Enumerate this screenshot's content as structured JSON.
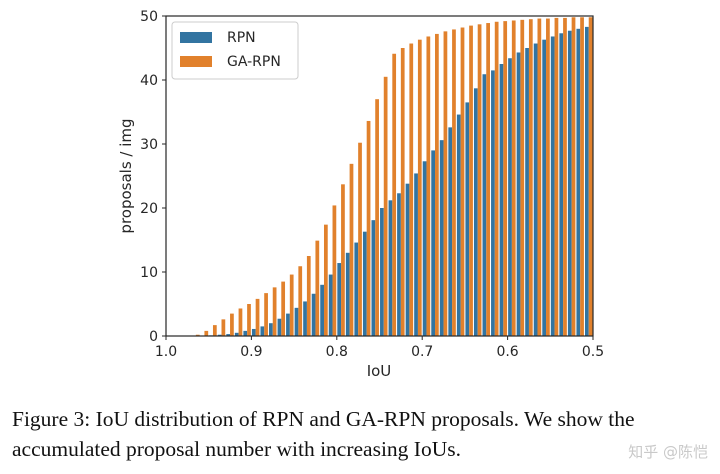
{
  "chart_data": {
    "type": "bar",
    "xlabel": "IoU",
    "ylabel": "proposals / img",
    "ylim": [
      0,
      50
    ],
    "xlim": [
      1.0,
      0.5
    ],
    "x_ticks": [
      "1.0",
      "0.9",
      "0.8",
      "0.7",
      "0.6",
      "0.5"
    ],
    "y_ticks": [
      "0",
      "10",
      "20",
      "30",
      "40",
      "50"
    ],
    "grid": false,
    "legend_position": "top-left",
    "categories": [
      0.975,
      0.965,
      0.955,
      0.945,
      0.935,
      0.925,
      0.915,
      0.905,
      0.895,
      0.885,
      0.875,
      0.865,
      0.855,
      0.845,
      0.835,
      0.825,
      0.815,
      0.805,
      0.795,
      0.785,
      0.775,
      0.765,
      0.755,
      0.745,
      0.735,
      0.725,
      0.715,
      0.705,
      0.695,
      0.685,
      0.675,
      0.665,
      0.655,
      0.645,
      0.635,
      0.625,
      0.615,
      0.605,
      0.595,
      0.585,
      0.575,
      0.565,
      0.555,
      0.545,
      0.535,
      0.525,
      0.515,
      0.505
    ],
    "series": [
      {
        "name": "RPN",
        "color": "#3274a1",
        "values": [
          0,
          0,
          0,
          0.1,
          0.2,
          0.3,
          0.5,
          0.8,
          1.1,
          1.5,
          2.0,
          2.7,
          3.5,
          4.4,
          5.4,
          6.6,
          8.0,
          9.6,
          11.4,
          13.0,
          14.6,
          16.3,
          18.1,
          20.0,
          21.2,
          22.3,
          23.8,
          25.4,
          27.3,
          29.0,
          30.6,
          32.6,
          34.6,
          36.5,
          38.7,
          40.9,
          41.5,
          42.5,
          43.4,
          44.3,
          45.0,
          45.7,
          46.3,
          46.8,
          47.3,
          47.7,
          48.0,
          48.3
        ]
      },
      {
        "name": "GA-RPN",
        "color": "#e1812c",
        "values": [
          0,
          0.2,
          0.8,
          1.7,
          2.6,
          3.5,
          4.3,
          5.0,
          5.8,
          6.7,
          7.6,
          8.5,
          9.6,
          10.9,
          12.5,
          14.9,
          17.4,
          20.4,
          23.7,
          26.9,
          30.2,
          33.6,
          37.0,
          40.5,
          44.1,
          45.0,
          45.7,
          46.3,
          46.8,
          47.2,
          47.6,
          47.9,
          48.2,
          48.5,
          48.7,
          48.9,
          49.1,
          49.2,
          49.3,
          49.4,
          49.5,
          49.6,
          49.6,
          49.7,
          49.7,
          49.8,
          49.8,
          49.8
        ]
      }
    ]
  },
  "caption": {
    "text": "Figure 3: IoU distribution of RPN and GA-RPN proposals. We show the accumulated proposal number with increasing IoUs."
  },
  "watermark": {
    "text": "知乎 @陈恺"
  }
}
